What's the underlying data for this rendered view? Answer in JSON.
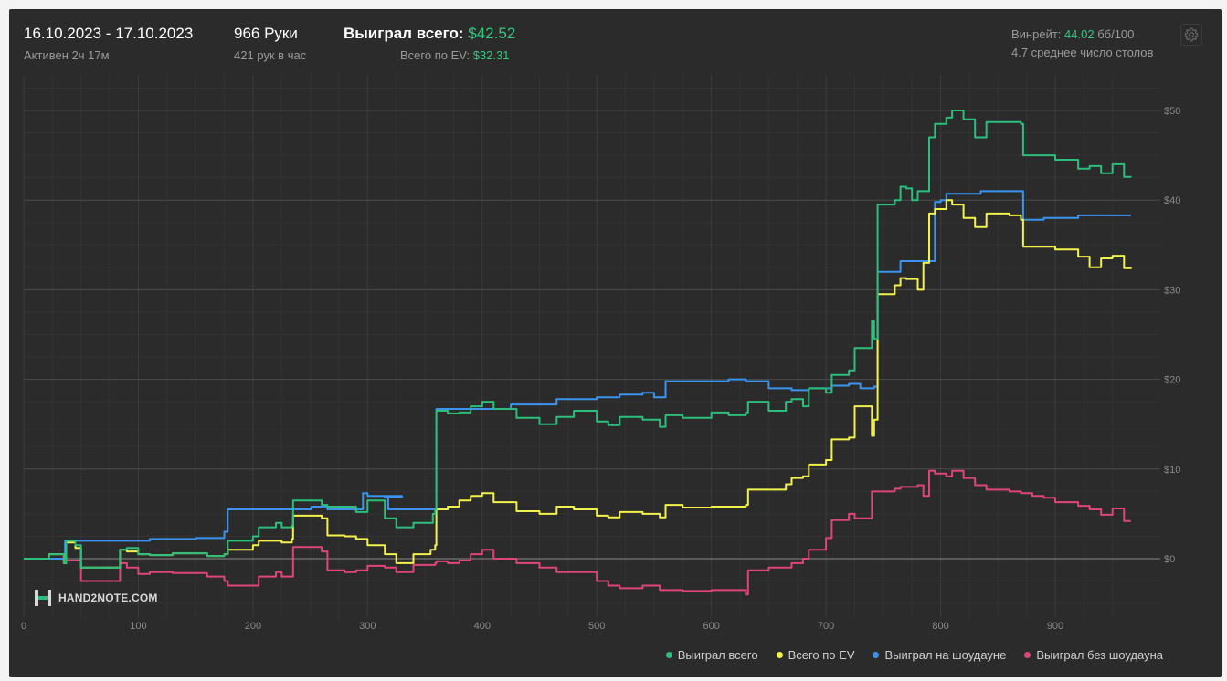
{
  "header": {
    "date_range": "16.10.2023 - 17.10.2023",
    "active_time": "Активен 2ч 17м",
    "hands": "966 Руки",
    "hands_per_hour": "421 рук в час",
    "won_total_label": "Выиграл всего:",
    "won_total_value": "$42.52",
    "ev_total_label": "Всего по EV:",
    "ev_total_value": "$32.31",
    "winrate_label": "Винрейт:",
    "winrate_value": "44.02",
    "winrate_unit": "бб/100",
    "avg_tables": "4.7 среднее число столов"
  },
  "logo": {
    "text": "HAND2NOTE.COM",
    "icon": "hand2note-logo-icon"
  },
  "settings": {
    "icon": "gear-icon"
  },
  "colors": {
    "background": "#2b2b2b",
    "green": "#2bbf7b",
    "yellow": "#f2f24a",
    "blue": "#3b95f0",
    "pink": "#e0457a",
    "grid": "#3a3a3a",
    "zero_line": "#8a8a8a"
  },
  "chart_data": {
    "type": "line",
    "x_ticks": [
      "0",
      "100",
      "200",
      "300",
      "400",
      "500",
      "600",
      "700",
      "800",
      "900"
    ],
    "y_ticks": [
      "$0",
      "$10",
      "$20",
      "$30",
      "$40",
      "$50"
    ],
    "xlim": [
      0,
      966
    ],
    "ylim": [
      -4.5,
      55
    ],
    "grid": true,
    "legend_position": "bottom-right",
    "series": [
      {
        "name": "Выиграл всего",
        "color": "#2bbf7b",
        "points": [
          [
            0,
            0
          ],
          [
            15,
            0
          ],
          [
            22,
            0.5
          ],
          [
            35,
            -0.5
          ],
          [
            37,
            2
          ],
          [
            45,
            1.5
          ],
          [
            50,
            -1
          ],
          [
            80,
            -1
          ],
          [
            84,
            1
          ],
          [
            90,
            1.2
          ],
          [
            100,
            0.5
          ],
          [
            110,
            0.4
          ],
          [
            130,
            0.6
          ],
          [
            160,
            0.3
          ],
          [
            175,
            0.5
          ],
          [
            178,
            2
          ],
          [
            200,
            2.5
          ],
          [
            205,
            3.5
          ],
          [
            220,
            4
          ],
          [
            225,
            3.5
          ],
          [
            234,
            3.7
          ],
          [
            235,
            6.5
          ],
          [
            260,
            6
          ],
          [
            265,
            5.8
          ],
          [
            280,
            5.8
          ],
          [
            290,
            5.2
          ],
          [
            300,
            6.5
          ],
          [
            315,
            4.5
          ],
          [
            325,
            3.5
          ],
          [
            340,
            4
          ],
          [
            355,
            4
          ],
          [
            357,
            5
          ],
          [
            359,
            5.5
          ],
          [
            360,
            16.5
          ],
          [
            370,
            16.2
          ],
          [
            380,
            16.3
          ],
          [
            390,
            17
          ],
          [
            400,
            17.5
          ],
          [
            410,
            16.7
          ],
          [
            430,
            15.7
          ],
          [
            450,
            15
          ],
          [
            465,
            15.8
          ],
          [
            480,
            16.5
          ],
          [
            500,
            15.3
          ],
          [
            510,
            14.9
          ],
          [
            520,
            15.8
          ],
          [
            540,
            15.5
          ],
          [
            555,
            14.7
          ],
          [
            560,
            16
          ],
          [
            575,
            15.7
          ],
          [
            600,
            16.3
          ],
          [
            615,
            16
          ],
          [
            630,
            16.3
          ],
          [
            632,
            17.5
          ],
          [
            650,
            16.5
          ],
          [
            665,
            17.5
          ],
          [
            670,
            17.8
          ],
          [
            680,
            17
          ],
          [
            685,
            19
          ],
          [
            700,
            18.5
          ],
          [
            705,
            20.5
          ],
          [
            720,
            21
          ],
          [
            725,
            23.5
          ],
          [
            740,
            26.5
          ],
          [
            742,
            24.5
          ],
          [
            745,
            39.5
          ],
          [
            760,
            40
          ],
          [
            765,
            41.5
          ],
          [
            770,
            41.3
          ],
          [
            775,
            40
          ],
          [
            780,
            41
          ],
          [
            790,
            47
          ],
          [
            795,
            48.5
          ],
          [
            805,
            49.2
          ],
          [
            810,
            50
          ],
          [
            820,
            49
          ],
          [
            830,
            47
          ],
          [
            840,
            48.7
          ],
          [
            860,
            48.7
          ],
          [
            870,
            48.5
          ],
          [
            872,
            45
          ],
          [
            890,
            45
          ],
          [
            900,
            44.5
          ],
          [
            920,
            43.5
          ],
          [
            930,
            43.8
          ],
          [
            940,
            43
          ],
          [
            950,
            44
          ],
          [
            960,
            42.6
          ],
          [
            966,
            42.52
          ]
        ]
      },
      {
        "name": "Всего по EV",
        "color": "#f2f24a",
        "points": [
          [
            0,
            0
          ],
          [
            15,
            0
          ],
          [
            22,
            0.5
          ],
          [
            35,
            -0.5
          ],
          [
            37,
            1.8
          ],
          [
            45,
            1.2
          ],
          [
            50,
            -1
          ],
          [
            80,
            -1
          ],
          [
            84,
            1
          ],
          [
            90,
            0.8
          ],
          [
            100,
            0.5
          ],
          [
            110,
            0.4
          ],
          [
            130,
            0.6
          ],
          [
            160,
            0.3
          ],
          [
            175,
            0.5
          ],
          [
            178,
            1
          ],
          [
            200,
            1.5
          ],
          [
            205,
            2
          ],
          [
            220,
            2
          ],
          [
            225,
            1.8
          ],
          [
            234,
            2.2
          ],
          [
            235,
            4.8
          ],
          [
            260,
            4.5
          ],
          [
            265,
            2.6
          ],
          [
            280,
            2.5
          ],
          [
            290,
            2.2
          ],
          [
            300,
            1.5
          ],
          [
            315,
            0.5
          ],
          [
            325,
            -0.5
          ],
          [
            340,
            0.5
          ],
          [
            355,
            1
          ],
          [
            359,
            1.5
          ],
          [
            360,
            5.5
          ],
          [
            370,
            5.8
          ],
          [
            380,
            6.5
          ],
          [
            390,
            7
          ],
          [
            400,
            7.3
          ],
          [
            410,
            6.3
          ],
          [
            430,
            5.3
          ],
          [
            450,
            5
          ],
          [
            465,
            5.8
          ],
          [
            480,
            5.5
          ],
          [
            500,
            4.8
          ],
          [
            510,
            4.6
          ],
          [
            520,
            5.2
          ],
          [
            540,
            5
          ],
          [
            555,
            4.6
          ],
          [
            560,
            6
          ],
          [
            575,
            5.7
          ],
          [
            600,
            5.8
          ],
          [
            615,
            5.8
          ],
          [
            630,
            6
          ],
          [
            632,
            7.7
          ],
          [
            650,
            7.7
          ],
          [
            665,
            8.3
          ],
          [
            670,
            9
          ],
          [
            680,
            9.2
          ],
          [
            685,
            10.5
          ],
          [
            700,
            11
          ],
          [
            705,
            13.3
          ],
          [
            720,
            13.5
          ],
          [
            725,
            17
          ],
          [
            740,
            13.7
          ],
          [
            742,
            15.5
          ],
          [
            745,
            29.5
          ],
          [
            760,
            30.5
          ],
          [
            765,
            31.3
          ],
          [
            770,
            31.2
          ],
          [
            780,
            30
          ],
          [
            785,
            33
          ],
          [
            790,
            38.5
          ],
          [
            795,
            39
          ],
          [
            805,
            40
          ],
          [
            810,
            39.5
          ],
          [
            820,
            38
          ],
          [
            830,
            37
          ],
          [
            840,
            38.5
          ],
          [
            860,
            38.3
          ],
          [
            870,
            37.8
          ],
          [
            872,
            34.8
          ],
          [
            890,
            34.8
          ],
          [
            900,
            34.5
          ],
          [
            920,
            33.7
          ],
          [
            930,
            32.5
          ],
          [
            940,
            33.5
          ],
          [
            950,
            33.8
          ],
          [
            960,
            32.4
          ],
          [
            966,
            32.31
          ]
        ]
      },
      {
        "name": "Выиграл на шоудауне",
        "color": "#3b95f0",
        "points": [
          [
            0,
            0
          ],
          [
            35,
            0
          ],
          [
            36,
            2
          ],
          [
            100,
            2
          ],
          [
            110,
            2.2
          ],
          [
            150,
            2.3
          ],
          [
            175,
            3
          ],
          [
            178,
            5.5
          ],
          [
            250,
            5.5
          ],
          [
            251,
            5.8
          ],
          [
            265,
            5.5
          ],
          [
            295,
            5.5
          ],
          [
            296,
            7.3
          ],
          [
            300,
            7
          ],
          [
            330,
            6.9
          ],
          [
            315,
            6.9
          ],
          [
            318,
            5.5
          ],
          [
            359,
            5.5
          ],
          [
            360,
            16.7
          ],
          [
            410,
            16.7
          ],
          [
            425,
            17.2
          ],
          [
            465,
            17.8
          ],
          [
            500,
            18
          ],
          [
            520,
            18.3
          ],
          [
            540,
            18.5
          ],
          [
            550,
            18
          ],
          [
            560,
            19.8
          ],
          [
            600,
            19.8
          ],
          [
            615,
            20
          ],
          [
            630,
            19.8
          ],
          [
            650,
            19
          ],
          [
            670,
            18.8
          ],
          [
            685,
            19
          ],
          [
            700,
            19
          ],
          [
            705,
            19.3
          ],
          [
            720,
            19.5
          ],
          [
            730,
            19
          ],
          [
            740,
            19
          ],
          [
            742,
            19.2
          ],
          [
            745,
            32
          ],
          [
            760,
            32
          ],
          [
            765,
            33.2
          ],
          [
            790,
            33.2
          ],
          [
            795,
            39.8
          ],
          [
            800,
            40
          ],
          [
            805,
            40.7
          ],
          [
            820,
            40.7
          ],
          [
            835,
            41
          ],
          [
            870,
            41
          ],
          [
            872,
            37.8
          ],
          [
            890,
            38
          ],
          [
            900,
            38
          ],
          [
            920,
            38.3
          ],
          [
            966,
            38.3
          ]
        ]
      },
      {
        "name": "Выиграл без шоудауна",
        "color": "#e0457a",
        "points": [
          [
            0,
            0
          ],
          [
            15,
            0
          ],
          [
            22,
            0.5
          ],
          [
            35,
            -0.5
          ],
          [
            37,
            -0.2
          ],
          [
            50,
            -2.5
          ],
          [
            80,
            -2.5
          ],
          [
            84,
            -0.5
          ],
          [
            90,
            -1
          ],
          [
            100,
            -1.7
          ],
          [
            110,
            -1.5
          ],
          [
            130,
            -1.6
          ],
          [
            160,
            -2
          ],
          [
            175,
            -2.5
          ],
          [
            178,
            -3
          ],
          [
            200,
            -3
          ],
          [
            205,
            -2
          ],
          [
            220,
            -1.5
          ],
          [
            225,
            -2
          ],
          [
            234,
            -2
          ],
          [
            235,
            1.3
          ],
          [
            260,
            0.8
          ],
          [
            265,
            -1.3
          ],
          [
            280,
            -1.5
          ],
          [
            290,
            -1.3
          ],
          [
            300,
            -0.8
          ],
          [
            315,
            -1
          ],
          [
            325,
            -1.5
          ],
          [
            340,
            -0.7
          ],
          [
            355,
            -0.7
          ],
          [
            359,
            -0.5
          ],
          [
            360,
            -0.3
          ],
          [
            370,
            -0.5
          ],
          [
            380,
            -0.2
          ],
          [
            390,
            0.5
          ],
          [
            400,
            1
          ],
          [
            410,
            0
          ],
          [
            430,
            -0.5
          ],
          [
            450,
            -1
          ],
          [
            465,
            -1.5
          ],
          [
            480,
            -1.5
          ],
          [
            500,
            -2.5
          ],
          [
            510,
            -3
          ],
          [
            520,
            -3.3
          ],
          [
            540,
            -3
          ],
          [
            555,
            -3.5
          ],
          [
            560,
            -3.5
          ],
          [
            575,
            -3.6
          ],
          [
            600,
            -3.5
          ],
          [
            615,
            -3.5
          ],
          [
            630,
            -4
          ],
          [
            632,
            -1.3
          ],
          [
            650,
            -1
          ],
          [
            665,
            -1
          ],
          [
            670,
            -0.5
          ],
          [
            680,
            0
          ],
          [
            685,
            1
          ],
          [
            700,
            2.3
          ],
          [
            705,
            4.3
          ],
          [
            720,
            5
          ],
          [
            725,
            4.5
          ],
          [
            740,
            7.5
          ],
          [
            742,
            7.5
          ],
          [
            745,
            7.5
          ],
          [
            760,
            7.8
          ],
          [
            765,
            8
          ],
          [
            780,
            8.2
          ],
          [
            785,
            7
          ],
          [
            790,
            9.8
          ],
          [
            795,
            9.5
          ],
          [
            805,
            9.2
          ],
          [
            810,
            9.8
          ],
          [
            820,
            9
          ],
          [
            830,
            8.2
          ],
          [
            840,
            7.7
          ],
          [
            860,
            7.5
          ],
          [
            870,
            7.3
          ],
          [
            880,
            7
          ],
          [
            890,
            6.8
          ],
          [
            900,
            6.3
          ],
          [
            920,
            5.9
          ],
          [
            930,
            5.5
          ],
          [
            940,
            4.9
          ],
          [
            950,
            5.6
          ],
          [
            960,
            4.2
          ],
          [
            966,
            4.2
          ]
        ]
      }
    ]
  }
}
